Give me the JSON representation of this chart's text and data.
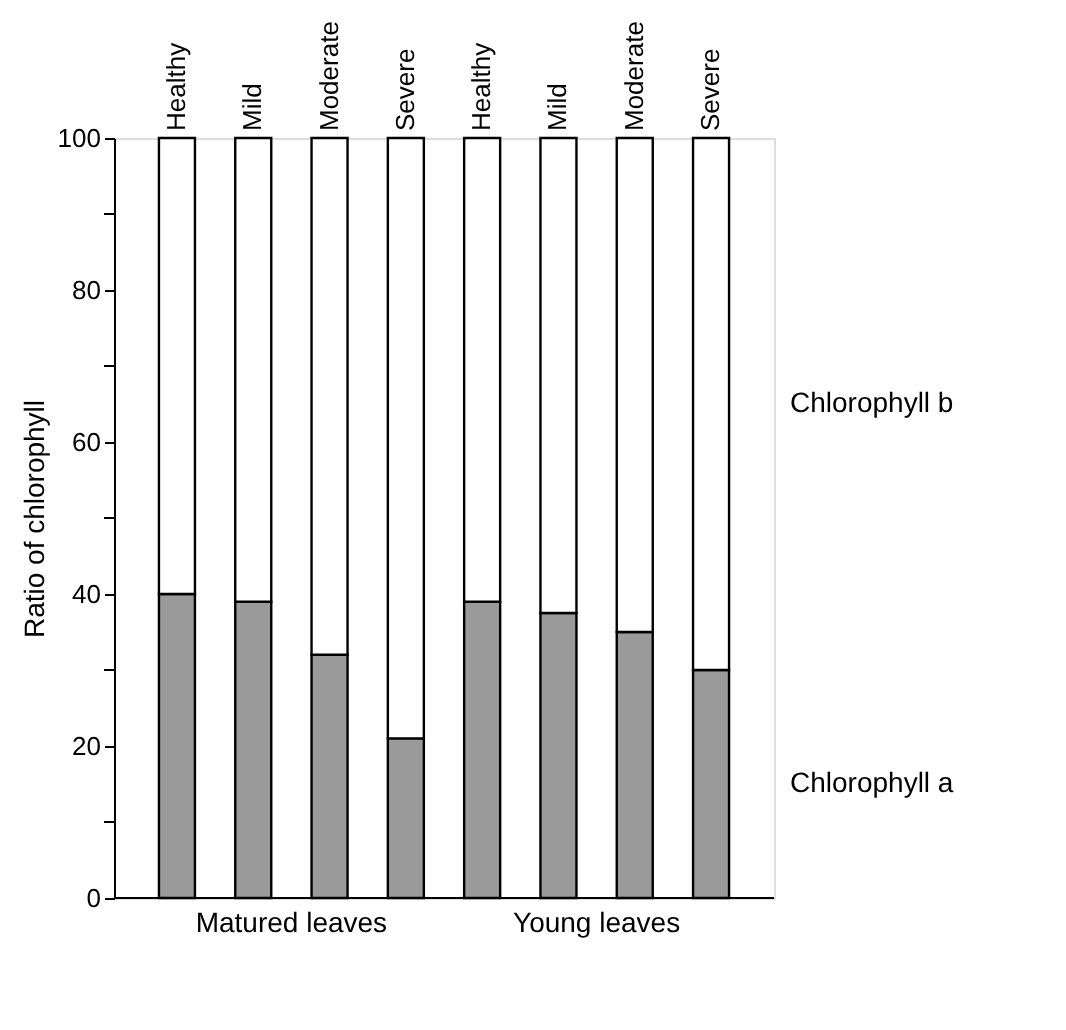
{
  "chart_data": {
    "type": "bar",
    "stacked": true,
    "ylabel": "Ratio of chlorophyll",
    "categories": [
      "Healthy",
      "Mild",
      "Moderate",
      "Severe",
      "Healthy",
      "Mild",
      "Moderate",
      "Severe"
    ],
    "series": [
      {
        "name": "Chlorophyll a",
        "color": "#9a9a9a",
        "values": [
          40,
          39,
          32,
          21,
          39,
          37.5,
          35,
          30
        ]
      },
      {
        "name": "Chlorophyll b",
        "color": "#ffffff",
        "values": [
          60,
          61,
          68,
          79,
          61,
          62.5,
          65,
          70
        ]
      }
    ],
    "ylim": [
      0,
      100
    ],
    "yticks": [
      0,
      {
        "value": 10,
        "label": null
      },
      20,
      {
        "value": 30,
        "label": null
      },
      40,
      {
        "value": 50,
        "label": null
      },
      60,
      {
        "value": 70,
        "label": null
      },
      80,
      {
        "value": 90,
        "label": null
      },
      100
    ],
    "annotations": [
      "Matured leaves",
      "Young leaves"
    ],
    "grid": false,
    "legend": false
  }
}
